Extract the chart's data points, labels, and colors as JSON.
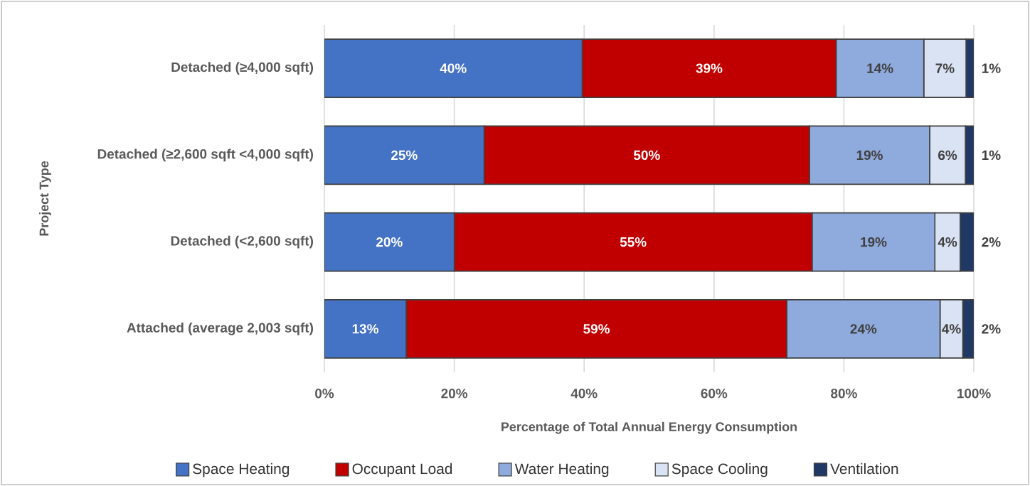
{
  "chart_data": {
    "type": "bar",
    "orientation": "horizontal",
    "stacked": true,
    "xlabel": "Percentage of Total Annual Energy Consumption",
    "ylabel": "Project Type",
    "categories": [
      "Detached (≥4,000 sqft)",
      "Detached (≥2,600 sqft <4,000 sqft)",
      "Detached (<2,600 sqft)",
      "Attached (average 2,003 sqft)"
    ],
    "series": [
      {
        "name": "Space Heating",
        "color": "#4472c4",
        "values": [
          39.7,
          24.6,
          20.0,
          12.6
        ],
        "value_labels": [
          "40%",
          "25%",
          "20%",
          "13%"
        ]
      },
      {
        "name": "Occupant Load",
        "color": "#c00000",
        "values": [
          39.1,
          50.1,
          55.1,
          58.6
        ],
        "value_labels": [
          "39%",
          "50%",
          "55%",
          "59%"
        ]
      },
      {
        "name": "Water Heating",
        "color": "#8faadc",
        "values": [
          13.5,
          18.5,
          18.9,
          23.6
        ],
        "value_labels": [
          "14%",
          "19%",
          "19%",
          "24%"
        ]
      },
      {
        "name": "Space Cooling",
        "color": "#dae3f3",
        "values": [
          6.5,
          5.5,
          3.9,
          3.5
        ],
        "value_labels": [
          "7%",
          "6%",
          "4%",
          "4%"
        ]
      },
      {
        "name": "Ventilation",
        "color": "#203864",
        "values": [
          1.2,
          1.3,
          2.1,
          1.7
        ],
        "value_labels": [
          "1%",
          "1%",
          "2%",
          "2%"
        ]
      }
    ],
    "xlim": [
      0,
      100
    ],
    "xticks": [
      {
        "value": 0,
        "label": "0%"
      },
      {
        "value": 20,
        "label": "20%"
      },
      {
        "value": 40,
        "label": "40%"
      },
      {
        "value": 60,
        "label": "60%"
      },
      {
        "value": 80,
        "label": "80%"
      },
      {
        "value": 100,
        "label": "100%"
      }
    ],
    "grid": "x",
    "legend": "bottom"
  }
}
